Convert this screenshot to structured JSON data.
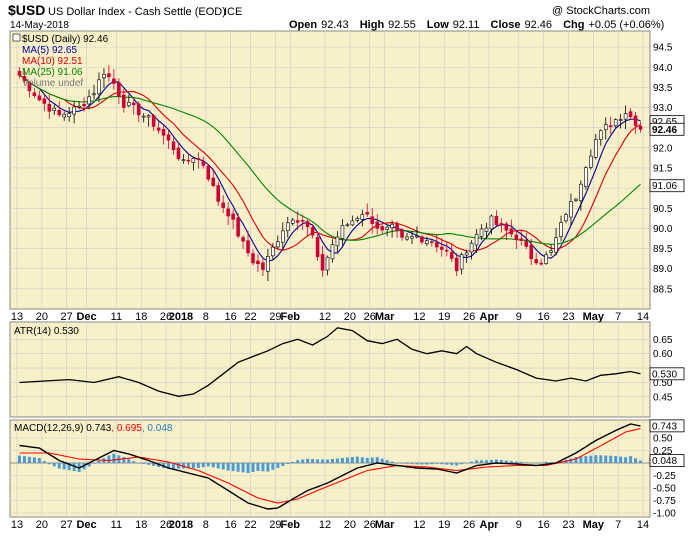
{
  "header": {
    "symbol": "$USD",
    "name": "US Dollar Index - Cash Settle (EOD)",
    "exchange": "ICE",
    "date": "14-May-2018",
    "copyright": "@ StockCharts.com",
    "ohlc": {
      "open_label": "Open",
      "open": "92.43",
      "high_label": "High",
      "high": "92.55",
      "low_label": "Low",
      "low": "92.11",
      "close_label": "Close",
      "close": "92.46",
      "chg_label": "Chg",
      "chg": "+0.05 (+0.06%)"
    }
  },
  "colors": {
    "panel_bg": "#f8f0c8",
    "grid": "#cccccc",
    "up_candle": "#ffffff",
    "down_candle": "#cc0033",
    "ma5": "#000099",
    "ma10": "#dd0000",
    "ma25": "#008800",
    "macd_line": "#000000",
    "signal_line": "#ff0000",
    "histogram": "#4a9ad8"
  },
  "chart_data": [
    {
      "panel": "price",
      "type": "candlestick",
      "legend": [
        {
          "label": "$USD (Daily)",
          "value": "92.46",
          "color": "#000000"
        },
        {
          "label": "MA(5)",
          "value": "92.65",
          "color": "#000099"
        },
        {
          "label": "MA(10)",
          "value": "92.51",
          "color": "#dd0000"
        },
        {
          "label": "MA(25)",
          "value": "91.06",
          "color": "#008800"
        },
        {
          "label": "Volume undef",
          "value": "",
          "color": "#777777"
        }
      ],
      "ylim": [
        88.0,
        94.9
      ],
      "y_ticks": [
        88.5,
        89.0,
        89.5,
        90.0,
        90.5,
        91.0,
        91.5,
        92.0,
        92.5,
        93.0,
        93.5,
        94.0,
        94.5
      ],
      "y_tick_labels": [
        "88.5",
        "89.0",
        "89.5",
        "90.0",
        "90.5",
        "91.0",
        "91.5",
        "92.0",
        "92.5",
        "93.0",
        "93.5",
        "94.0",
        "94.5"
      ],
      "value_tags": [
        {
          "value": 92.65,
          "label": "92.65",
          "bold": false
        },
        {
          "value": 92.46,
          "label": "92.46",
          "bold": true
        },
        {
          "value": 91.06,
          "label": "91.06",
          "bold": false
        }
      ],
      "close_anchors": [
        [
          0,
          93.8
        ],
        [
          4,
          93.2
        ],
        [
          8,
          92.8
        ],
        [
          12,
          93.0
        ],
        [
          15,
          93.4
        ],
        [
          17,
          93.9
        ],
        [
          19,
          93.6
        ],
        [
          21,
          93.1
        ],
        [
          24,
          92.9
        ],
        [
          27,
          92.6
        ],
        [
          31,
          92.0
        ],
        [
          33,
          91.6
        ],
        [
          35,
          91.8
        ],
        [
          37,
          91.6
        ],
        [
          40,
          90.7
        ],
        [
          42,
          90.4
        ],
        [
          45,
          89.6
        ],
        [
          47,
          89.2
        ],
        [
          49,
          89.0
        ],
        [
          51,
          89.5
        ],
        [
          53,
          90.0
        ],
        [
          55,
          90.3
        ],
        [
          57,
          90.2
        ],
        [
          59,
          89.8
        ],
        [
          60,
          89.2
        ],
        [
          61,
          89.0
        ],
        [
          63,
          89.6
        ],
        [
          65,
          90.0
        ],
        [
          67,
          90.2
        ],
        [
          69,
          90.4
        ],
        [
          71,
          90.2
        ],
        [
          73,
          89.9
        ],
        [
          75,
          90.0
        ],
        [
          77,
          89.7
        ],
        [
          80,
          89.8
        ],
        [
          83,
          89.7
        ],
        [
          86,
          89.4
        ],
        [
          88,
          89.0
        ],
        [
          90,
          89.5
        ],
        [
          93,
          90.0
        ],
        [
          95,
          90.2
        ],
        [
          97,
          90.0
        ],
        [
          100,
          89.8
        ],
        [
          103,
          89.3
        ],
        [
          105,
          89.2
        ],
        [
          107,
          89.4
        ],
        [
          110,
          90.4
        ],
        [
          112,
          90.8
        ],
        [
          114,
          91.6
        ],
        [
          116,
          92.2
        ],
        [
          118,
          92.5
        ],
        [
          120,
          92.7
        ],
        [
          122,
          92.9
        ],
        [
          124,
          92.65
        ],
        [
          125,
          92.46
        ]
      ],
      "candle_count": 126
    },
    {
      "panel": "atr",
      "type": "line",
      "legend": [
        {
          "label": "ATR(14)",
          "value": "0.530",
          "color": "#000000"
        }
      ],
      "ylim": [
        0.38,
        0.71
      ],
      "y_ticks": [
        0.45,
        0.5,
        0.55,
        0.6,
        0.65
      ],
      "y_tick_labels": [
        "0.45",
        "0.50",
        "",
        "0.60",
        "0.65"
      ],
      "value_tags": [
        {
          "value": 0.53,
          "label": "0.530",
          "bold": false
        }
      ],
      "points": [
        [
          0,
          0.5
        ],
        [
          5,
          0.505
        ],
        [
          10,
          0.51
        ],
        [
          15,
          0.5
        ],
        [
          20,
          0.52
        ],
        [
          24,
          0.5
        ],
        [
          28,
          0.47
        ],
        [
          32,
          0.452
        ],
        [
          35,
          0.46
        ],
        [
          38,
          0.49
        ],
        [
          41,
          0.53
        ],
        [
          44,
          0.57
        ],
        [
          47,
          0.59
        ],
        [
          50,
          0.61
        ],
        [
          53,
          0.635
        ],
        [
          56,
          0.65
        ],
        [
          59,
          0.63
        ],
        [
          62,
          0.66
        ],
        [
          64,
          0.69
        ],
        [
          67,
          0.68
        ],
        [
          70,
          0.645
        ],
        [
          73,
          0.635
        ],
        [
          76,
          0.65
        ],
        [
          79,
          0.615
        ],
        [
          82,
          0.6
        ],
        [
          85,
          0.61
        ],
        [
          88,
          0.6
        ],
        [
          90,
          0.625
        ],
        [
          92,
          0.6
        ],
        [
          96,
          0.57
        ],
        [
          100,
          0.545
        ],
        [
          104,
          0.515
        ],
        [
          108,
          0.505
        ],
        [
          111,
          0.515
        ],
        [
          114,
          0.505
        ],
        [
          117,
          0.525
        ],
        [
          120,
          0.53
        ],
        [
          123,
          0.538
        ],
        [
          125,
          0.53
        ]
      ]
    },
    {
      "panel": "macd",
      "type": "line+histogram",
      "legend": [
        {
          "label": "MACD(12,26,9)",
          "value": "0.743",
          "color": "#000000"
        },
        {
          "label": "",
          "value": "0.695",
          "color": "#ff0000"
        },
        {
          "label": "",
          "value": "0.048",
          "color": "#2080c0"
        }
      ],
      "ylim": [
        -1.08,
        0.86
      ],
      "y_ticks": [
        -1.0,
        -0.75,
        -0.5,
        -0.25,
        0.0,
        0.25,
        0.5
      ],
      "y_tick_labels": [
        "-1.00",
        "-0.75",
        "-0.50",
        "-0.25",
        "0.00",
        "0.25",
        "0.50"
      ],
      "value_tags": [
        {
          "value": 0.743,
          "label": "0.743",
          "bold": false
        },
        {
          "value": 0.048,
          "label": "0.048",
          "bold": false
        }
      ],
      "macd_points": [
        [
          0,
          0.35
        ],
        [
          4,
          0.3
        ],
        [
          8,
          0.05
        ],
        [
          12,
          -0.1
        ],
        [
          16,
          0.1
        ],
        [
          19,
          0.25
        ],
        [
          22,
          0.18
        ],
        [
          26,
          0.05
        ],
        [
          30,
          -0.1
        ],
        [
          34,
          -0.2
        ],
        [
          38,
          -0.3
        ],
        [
          42,
          -0.55
        ],
        [
          46,
          -0.8
        ],
        [
          50,
          -0.92
        ],
        [
          52,
          -0.9
        ],
        [
          55,
          -0.72
        ],
        [
          58,
          -0.55
        ],
        [
          62,
          -0.4
        ],
        [
          65,
          -0.25
        ],
        [
          68,
          -0.1
        ],
        [
          72,
          0.0
        ],
        [
          76,
          -0.05
        ],
        [
          80,
          -0.1
        ],
        [
          84,
          -0.12
        ],
        [
          88,
          -0.2
        ],
        [
          92,
          -0.05
        ],
        [
          96,
          0.0
        ],
        [
          100,
          -0.02
        ],
        [
          104,
          -0.05
        ],
        [
          108,
          0.0
        ],
        [
          112,
          0.2
        ],
        [
          116,
          0.45
        ],
        [
          120,
          0.65
        ],
        [
          123,
          0.78
        ],
        [
          125,
          0.74
        ]
      ],
      "signal_points": [
        [
          0,
          0.2
        ],
        [
          6,
          0.2
        ],
        [
          12,
          0.08
        ],
        [
          18,
          0.05
        ],
        [
          24,
          0.12
        ],
        [
          30,
          0.02
        ],
        [
          36,
          -0.15
        ],
        [
          42,
          -0.4
        ],
        [
          48,
          -0.7
        ],
        [
          52,
          -0.8
        ],
        [
          56,
          -0.72
        ],
        [
          60,
          -0.55
        ],
        [
          65,
          -0.35
        ],
        [
          70,
          -0.15
        ],
        [
          76,
          -0.05
        ],
        [
          82,
          -0.08
        ],
        [
          88,
          -0.15
        ],
        [
          94,
          -0.08
        ],
        [
          100,
          -0.05
        ],
        [
          106,
          -0.05
        ],
        [
          112,
          0.08
        ],
        [
          118,
          0.4
        ],
        [
          122,
          0.62
        ],
        [
          125,
          0.69
        ]
      ]
    }
  ],
  "x_axis": {
    "tick_labels": [
      {
        "label": "13",
        "index": 0,
        "bold": false
      },
      {
        "label": "20",
        "index": 5,
        "bold": false
      },
      {
        "label": "27",
        "index": 10,
        "bold": false
      },
      {
        "label": "Dec",
        "index": 14,
        "bold": true
      },
      {
        "label": "11",
        "index": 20,
        "bold": false
      },
      {
        "label": "18",
        "index": 25,
        "bold": false
      },
      {
        "label": "26",
        "index": 30,
        "bold": false
      },
      {
        "label": "2018",
        "index": 33,
        "bold": true
      },
      {
        "label": "8",
        "index": 38,
        "bold": false
      },
      {
        "label": "16",
        "index": 43,
        "bold": false
      },
      {
        "label": "22",
        "index": 47,
        "bold": false
      },
      {
        "label": "29",
        "index": 52,
        "bold": false
      },
      {
        "label": "Feb",
        "index": 55,
        "bold": true
      },
      {
        "label": "12",
        "index": 62,
        "bold": false
      },
      {
        "label": "20",
        "index": 67,
        "bold": false
      },
      {
        "label": "26",
        "index": 71,
        "bold": false
      },
      {
        "label": "Mar",
        "index": 74,
        "bold": true
      },
      {
        "label": "12",
        "index": 81,
        "bold": false
      },
      {
        "label": "19",
        "index": 86,
        "bold": false
      },
      {
        "label": "26",
        "index": 91,
        "bold": false
      },
      {
        "label": "Apr",
        "index": 95,
        "bold": true
      },
      {
        "label": "9",
        "index": 101,
        "bold": false
      },
      {
        "label": "16",
        "index": 106,
        "bold": false
      },
      {
        "label": "23",
        "index": 111,
        "bold": false
      },
      {
        "label": "May",
        "index": 116,
        "bold": true
      },
      {
        "label": "7",
        "index": 121,
        "bold": false
      },
      {
        "label": "14",
        "index": 126,
        "bold": false
      }
    ]
  }
}
